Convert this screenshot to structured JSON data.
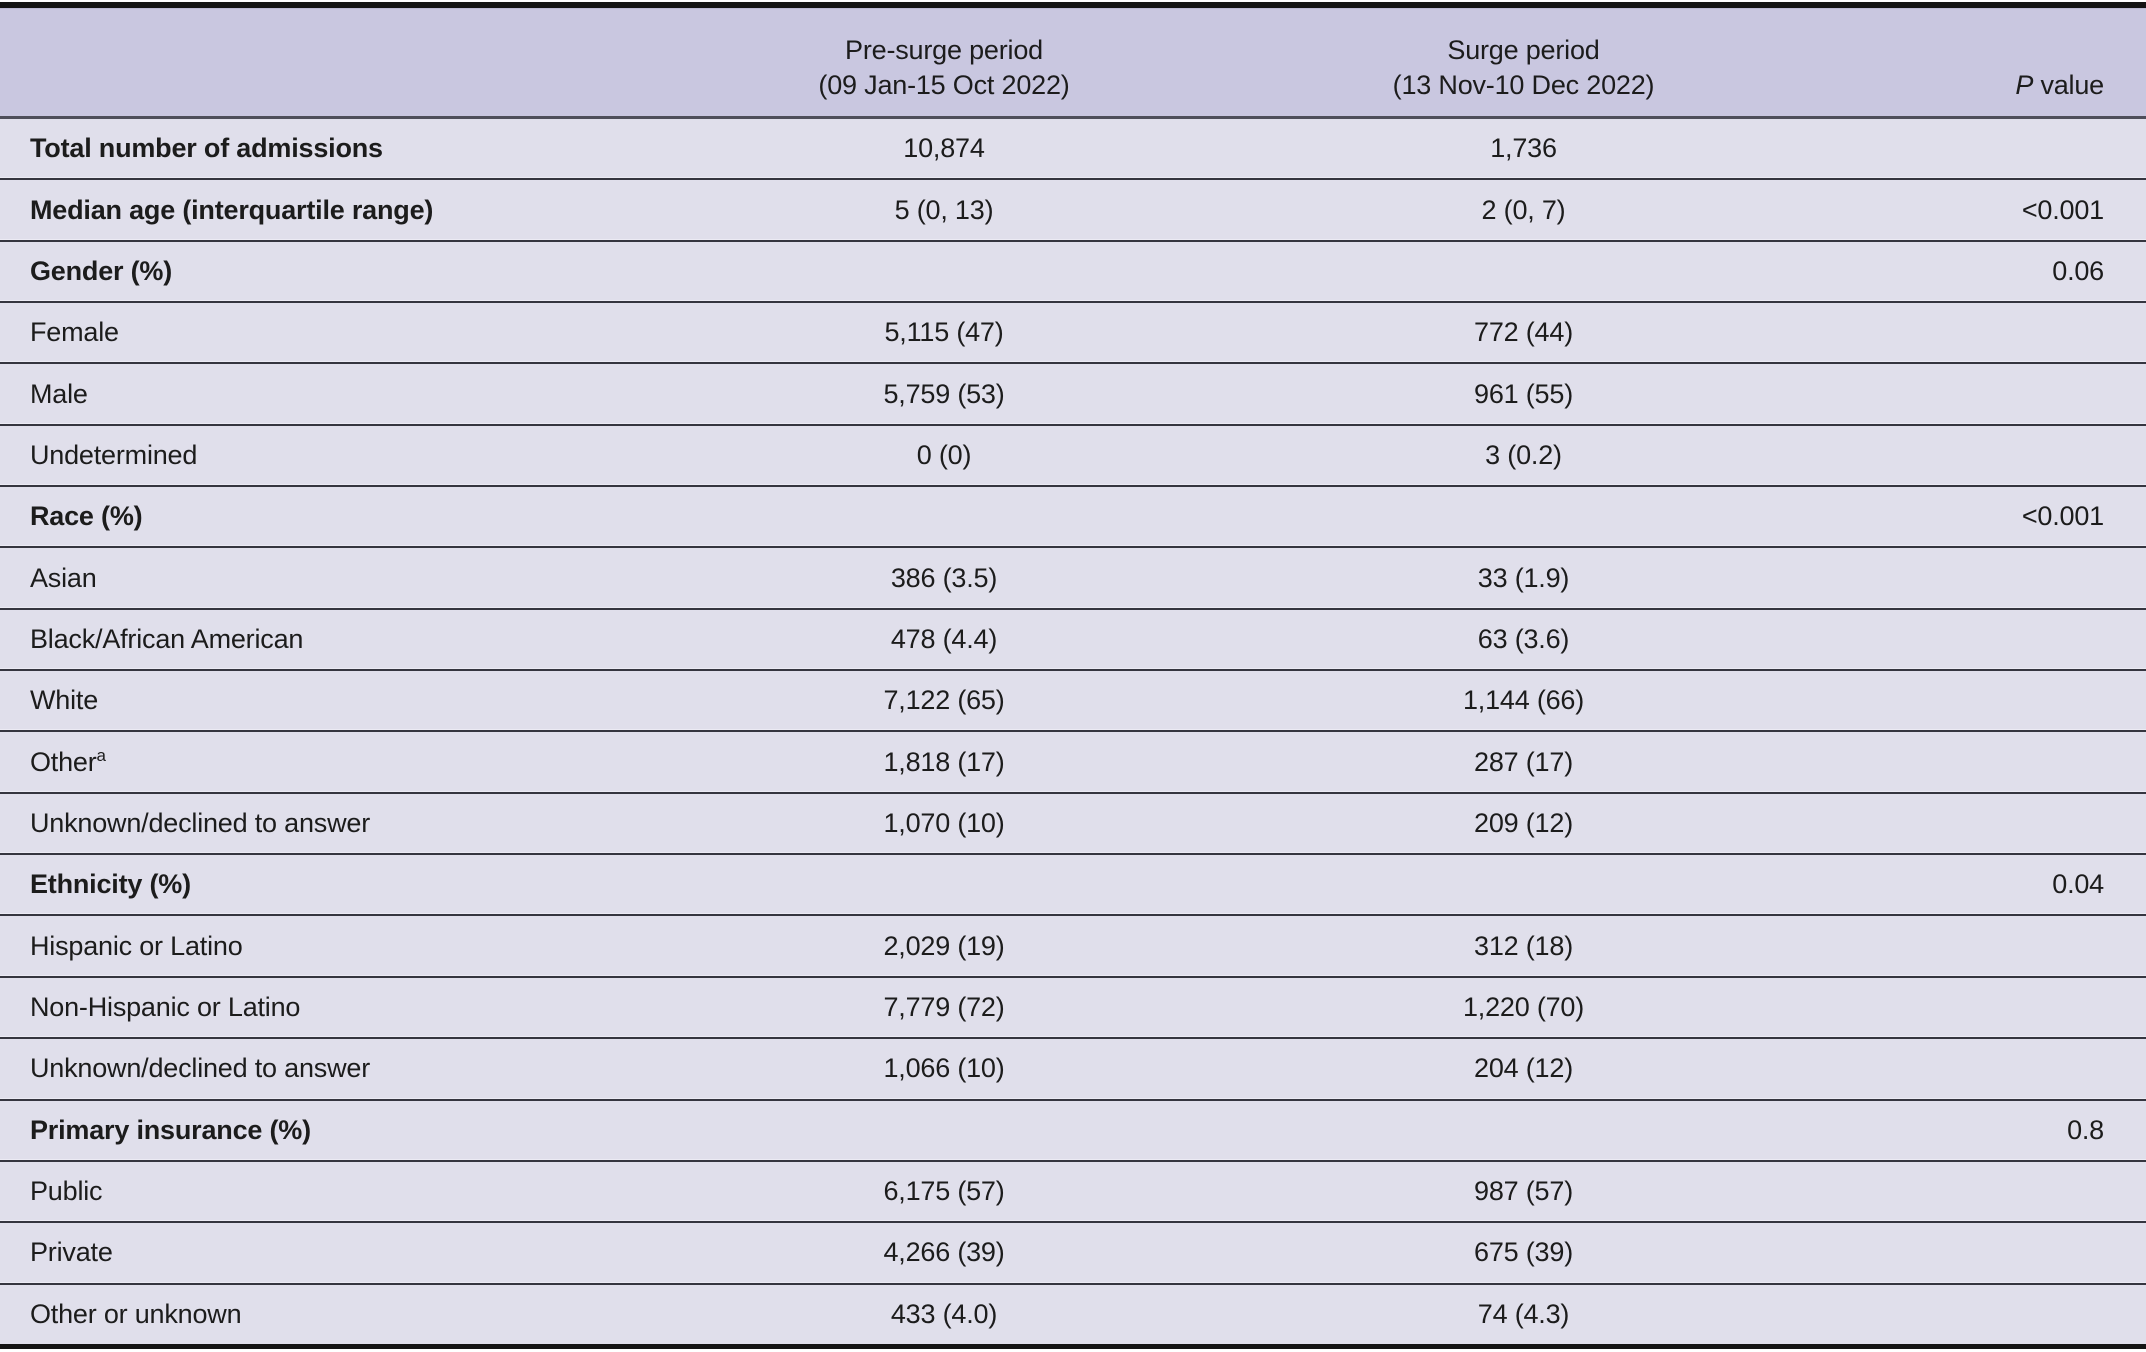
{
  "table": {
    "title_semantic": "Demographics of admissions: pre-surge vs surge period",
    "columns": {
      "label": "",
      "pre_surge": {
        "label": "Pre-surge period",
        "sublabel": "(09 Jan-15 Oct 2022)"
      },
      "surge": {
        "label": "Surge period",
        "sublabel": "(13 Nov-10 Dec 2022)"
      },
      "p_value": {
        "label_italic": "P",
        "label_rest": " value"
      }
    },
    "rows": [
      {
        "label": "Total number of admissions",
        "bold": true,
        "sup": "",
        "pre": "10,874",
        "surge": "1,736",
        "p": ""
      },
      {
        "label": "Median age (interquartile range)",
        "bold": true,
        "sup": "",
        "pre": "5 (0, 13)",
        "surge": "2 (0, 7)",
        "p": "<0.001"
      },
      {
        "label": "Gender (%)",
        "bold": true,
        "sup": "",
        "pre": "",
        "surge": "",
        "p": "0.06"
      },
      {
        "label": "Female",
        "bold": false,
        "sup": "",
        "pre": "5,115 (47)",
        "surge": "772 (44)",
        "p": ""
      },
      {
        "label": "Male",
        "bold": false,
        "sup": "",
        "pre": "5,759 (53)",
        "surge": "961 (55)",
        "p": ""
      },
      {
        "label": "Undetermined",
        "bold": false,
        "sup": "",
        "pre": "0 (0)",
        "surge": "3 (0.2)",
        "p": ""
      },
      {
        "label": "Race (%)",
        "bold": true,
        "sup": "",
        "pre": "",
        "surge": "",
        "p": "<0.001"
      },
      {
        "label": "Asian",
        "bold": false,
        "sup": "",
        "pre": "386 (3.5)",
        "surge": "33 (1.9)",
        "p": ""
      },
      {
        "label": "Black/African American",
        "bold": false,
        "sup": "",
        "pre": "478 (4.4)",
        "surge": "63 (3.6)",
        "p": ""
      },
      {
        "label": "White",
        "bold": false,
        "sup": "",
        "pre": "7,122 (65)",
        "surge": "1,144 (66)",
        "p": ""
      },
      {
        "label": "Other",
        "bold": false,
        "sup": "a",
        "pre": "1,818 (17)",
        "surge": "287 (17)",
        "p": ""
      },
      {
        "label": "Unknown/declined to answer",
        "bold": false,
        "sup": "",
        "pre": "1,070 (10)",
        "surge": "209 (12)",
        "p": ""
      },
      {
        "label": "Ethnicity (%)",
        "bold": true,
        "sup": "",
        "pre": "",
        "surge": "",
        "p": "0.04"
      },
      {
        "label": "Hispanic or Latino",
        "bold": false,
        "sup": "",
        "pre": "2,029 (19)",
        "surge": "312 (18)",
        "p": ""
      },
      {
        "label": "Non-Hispanic or Latino",
        "bold": false,
        "sup": "",
        "pre": "7,779 (72)",
        "surge": "1,220 (70)",
        "p": ""
      },
      {
        "label": "Unknown/declined to answer",
        "bold": false,
        "sup": "",
        "pre": "1,066 (10)",
        "surge": "204 (12)",
        "p": ""
      },
      {
        "label": "Primary insurance (%)",
        "bold": true,
        "sup": "",
        "pre": "",
        "surge": "",
        "p": "0.8"
      },
      {
        "label": "Public",
        "bold": false,
        "sup": "",
        "pre": "6,175 (57)",
        "surge": "987 (57)",
        "p": ""
      },
      {
        "label": "Private",
        "bold": false,
        "sup": "",
        "pre": "4,266 (39)",
        "surge": "675 (39)",
        "p": ""
      },
      {
        "label": "Other or unknown",
        "bold": false,
        "sup": "",
        "pre": "433 (4.0)",
        "surge": "74 (4.3)",
        "p": ""
      }
    ],
    "colors": {
      "header_bg": "#c9c7e0",
      "row_bg": "#e0dfeb",
      "divider": "#35353f",
      "head_divider": "#4e4e5a",
      "outer_rule": "#141414",
      "text": "#1c1c1c"
    }
  }
}
